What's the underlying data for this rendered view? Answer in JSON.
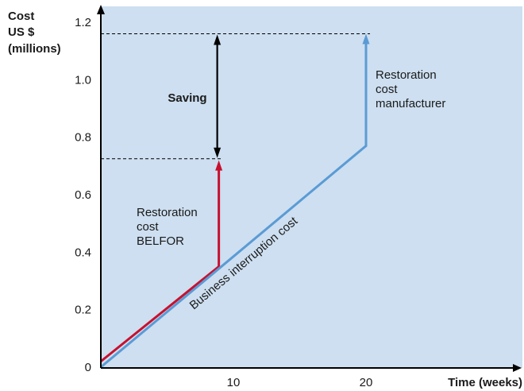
{
  "chart_data": {
    "type": "line",
    "ylabel_lines": [
      "Cost",
      "US $",
      "(millions)"
    ],
    "xlabel": "Time (weeks)",
    "xlim": [
      0,
      21.5
    ],
    "ylim": [
      0,
      1.22
    ],
    "xticks": [
      10,
      20
    ],
    "yticks": [
      0,
      0.2,
      0.4,
      0.6,
      0.8,
      1.0,
      1.2
    ],
    "ytick_labels": [
      "0",
      "0.2",
      "0.4",
      "0.6",
      "0.8",
      "1.0",
      "1.2"
    ],
    "grid": false,
    "series": [
      {
        "key": "belfor",
        "color": "#c8102e",
        "x": [
          0,
          8.9,
          8.9
        ],
        "y": [
          0.02,
          0.35,
          0.72
        ]
      },
      {
        "key": "business",
        "color": "#5b9bd5",
        "x": [
          0,
          20,
          20
        ],
        "y": [
          0,
          0.77,
          1.16
        ]
      }
    ],
    "reference_lines": [
      0.725,
      1.16
    ],
    "saving_arrow": {
      "x": 8.9,
      "y_from": 0.725,
      "y_to": 1.16
    },
    "annotations": {
      "saving": "Saving",
      "restoration_belfor": [
        "Restoration",
        "cost",
        "BELFOR"
      ],
      "restoration_manufacturer": [
        "Restoration",
        "cost",
        "manufacturer"
      ],
      "business_interruption": "Business interruption cost"
    },
    "colors": {
      "background": "#cddff0",
      "axis": "#000000",
      "belfor": "#c8102e",
      "business": "#5b9bd5"
    }
  }
}
